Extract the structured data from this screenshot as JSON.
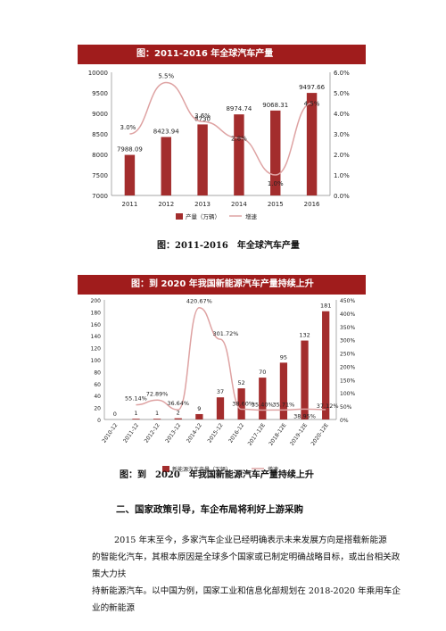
{
  "charts": [
    {
      "header": "图：2011-2016 年全球汽车产量",
      "caption": "图：2011-2016　年全球汽车产量",
      "chart_data": {
        "type": "bar",
        "categories": [
          "2011",
          "2012",
          "2013",
          "2014",
          "2015",
          "2016"
        ],
        "series": [
          {
            "name": "产量（万辆）",
            "type": "bar",
            "values": [
              7988.09,
              8423.94,
              8730,
              8974.74,
              9068.31,
              9497.66
            ],
            "labels": [
              "7988.09",
              "8423.94",
              "8730",
              "8974.74",
              "9068.31",
              "9497.66"
            ]
          },
          {
            "name": "增速",
            "type": "line",
            "axis": "right",
            "values": [
              3.0,
              5.5,
              3.6,
              2.8,
              1.0,
              4.5
            ],
            "labels": [
              "3.0%",
              "5.5%",
              "3.6%",
              "2.8%",
              "1.0%",
              "4.5%"
            ]
          }
        ],
        "ylim": [
          7000,
          10000
        ],
        "yticks": [
          "7000",
          "7500",
          "8000",
          "8500",
          "9000",
          "9500",
          "10000"
        ],
        "y2lim": [
          0,
          6
        ],
        "y2ticks": [
          "0.0%",
          "1.0%",
          "2.0%",
          "3.0%",
          "4.0%",
          "5.0%",
          "6.0%"
        ],
        "legend": "bottom",
        "colors": {
          "bar": "#a32d2d",
          "line": "#dea2a2"
        }
      }
    },
    {
      "header": "图：到 2020 年我国新能源汽车产量持续上升",
      "caption": "图：到　2020　年我国新能源汽车产量持续上升",
      "chart_data": {
        "type": "bar",
        "categories": [
          "2010-12",
          "2011-12",
          "2012-12",
          "2013-12",
          "2014-12",
          "2015-12",
          "2016-12",
          "2017-12E",
          "2018-12E",
          "2019-12E",
          "2020-12E"
        ],
        "series": [
          {
            "name": "新能源汽车产量（万辆）",
            "type": "bar",
            "values": [
              0,
              1,
              1,
              2,
              9,
              37,
              52,
              70,
              95,
              132,
              181
            ],
            "labels": [
              "0",
              "1",
              "1",
              "2",
              "9",
              "37",
              "52",
              "70",
              "95",
              "132",
              "181"
            ]
          },
          {
            "name": "增速",
            "type": "line",
            "axis": "right",
            "values": [
              null,
              55.14,
              72.89,
              36.64,
              420.67,
              301.72,
              38.6,
              35.4,
              35.71,
              38.95,
              37.12
            ],
            "labels": [
              "",
              "55.14%",
              "72.89%",
              "36.64%",
              "420.67%",
              "301.72%",
              "38.60%",
              "35.40%",
              "35.71%",
              "38.95%",
              "37.12%"
            ]
          }
        ],
        "ylim": [
          0,
          200
        ],
        "yticks": [
          "0",
          "20",
          "40",
          "60",
          "80",
          "100",
          "120",
          "140",
          "160",
          "180",
          "200"
        ],
        "y2lim": [
          0,
          450
        ],
        "y2ticks": [
          "0%",
          "50%",
          "100%",
          "150%",
          "200%",
          "250%",
          "300%",
          "350%",
          "400%",
          "450%"
        ],
        "legend": "bottom",
        "colors": {
          "bar": "#a32d2d",
          "line": "#dea2a2"
        }
      }
    }
  ],
  "section_title": "二、国家政策引导，车企布局将利好上游采购",
  "paragraph_lines": [
    "2015 年末至今，多家汽车企业已经明确表示未来发展方向是搭载新能源",
    "的智能化汽车，其根本原因是全球多个国家或已制定明确战略目标，或出台相关政策大力扶",
    "持新能源汽车。以中国为例，国家工业和信息化部规划在 2018-2020 年乘用车企业的新能源"
  ]
}
